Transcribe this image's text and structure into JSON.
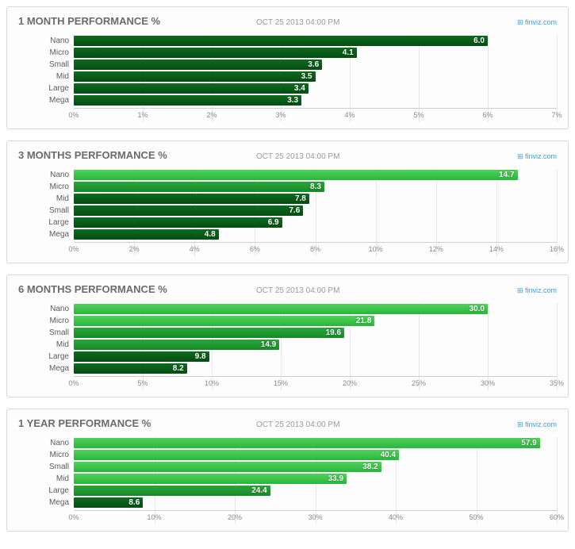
{
  "timestamp": "OCT 25 2013 04:00 PM",
  "source_label": "finviz.com",
  "bar_gradient_dark": {
    "top": "#0e6b1e",
    "bottom": "#044d12"
  },
  "bar_gradient_mid": {
    "top": "#2aa53a",
    "bottom": "#178a28"
  },
  "bar_gradient_light": {
    "top": "#4fd25a",
    "bottom": "#2bb53d"
  },
  "grid_color": "#e8e8e8",
  "panels": [
    {
      "title": "1 MONTH PERFORMANCE %",
      "xmax": 7,
      "xtick_step": 1,
      "rows": [
        {
          "label": "Nano",
          "value": 6.0,
          "shade": "dark"
        },
        {
          "label": "Micro",
          "value": 4.1,
          "shade": "dark"
        },
        {
          "label": "Small",
          "value": 3.6,
          "shade": "dark"
        },
        {
          "label": "Mid",
          "value": 3.5,
          "shade": "dark"
        },
        {
          "label": "Large",
          "value": 3.4,
          "shade": "dark"
        },
        {
          "label": "Mega",
          "value": 3.3,
          "shade": "dark"
        }
      ]
    },
    {
      "title": "3 MONTHS PERFORMANCE %",
      "xmax": 16,
      "xtick_step": 2,
      "rows": [
        {
          "label": "Nano",
          "value": 14.7,
          "shade": "light"
        },
        {
          "label": "Micro",
          "value": 8.3,
          "shade": "mid"
        },
        {
          "label": "Mid",
          "value": 7.8,
          "shade": "dark"
        },
        {
          "label": "Small",
          "value": 7.6,
          "shade": "dark"
        },
        {
          "label": "Large",
          "value": 6.9,
          "shade": "dark"
        },
        {
          "label": "Mega",
          "value": 4.8,
          "shade": "dark"
        }
      ]
    },
    {
      "title": "6 MONTHS PERFORMANCE %",
      "xmax": 35,
      "xtick_step": 5,
      "rows": [
        {
          "label": "Nano",
          "value": 30.0,
          "shade": "light"
        },
        {
          "label": "Micro",
          "value": 21.8,
          "shade": "light"
        },
        {
          "label": "Small",
          "value": 19.6,
          "shade": "mid"
        },
        {
          "label": "Mid",
          "value": 14.9,
          "shade": "mid"
        },
        {
          "label": "Large",
          "value": 9.8,
          "shade": "dark"
        },
        {
          "label": "Mega",
          "value": 8.2,
          "shade": "dark"
        }
      ]
    },
    {
      "title": "1 YEAR PERFORMANCE %",
      "xmax": 60,
      "xtick_step": 10,
      "rows": [
        {
          "label": "Nano",
          "value": 57.9,
          "shade": "light"
        },
        {
          "label": "Micro",
          "value": 40.4,
          "shade": "light"
        },
        {
          "label": "Small",
          "value": 38.2,
          "shade": "light"
        },
        {
          "label": "Mid",
          "value": 33.9,
          "shade": "light"
        },
        {
          "label": "Large",
          "value": 24.4,
          "shade": "mid"
        },
        {
          "label": "Mega",
          "value": 8.6,
          "shade": "dark"
        }
      ]
    }
  ]
}
